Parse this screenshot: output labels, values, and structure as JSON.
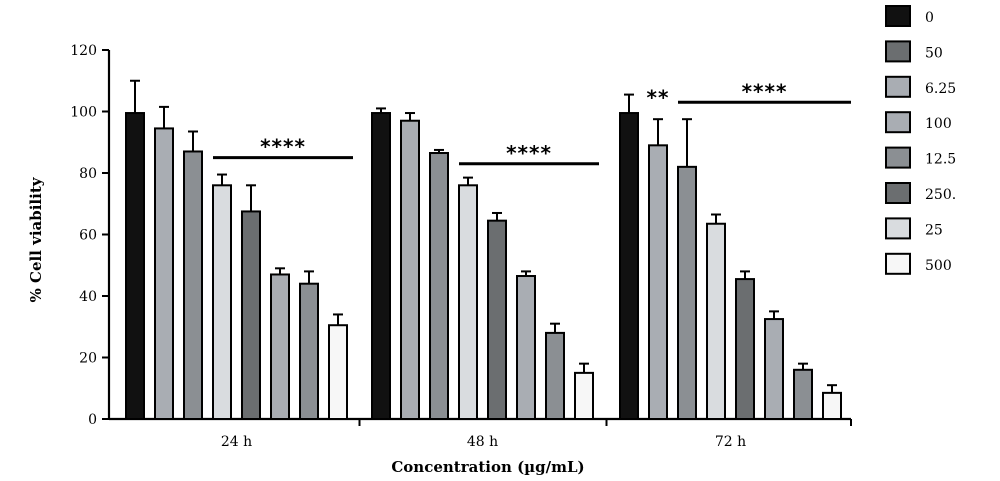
{
  "chart_data": {
    "type": "bar",
    "xlabel": "Concentration (µg/mL)",
    "ylabel": "% Cell viability",
    "ylim": [
      0,
      120
    ],
    "yticks": [
      "0",
      "20",
      "40",
      "60",
      "80",
      "100",
      "120"
    ],
    "categories": [
      "24 h",
      "48 h",
      "72 h"
    ],
    "legend_position": "right",
    "series": [
      {
        "name": "0",
        "color": "#111111",
        "values": [
          99.5,
          99.5,
          99.5
        ],
        "errors": [
          10.5,
          1.5,
          6.0
        ]
      },
      {
        "name": "50",
        "color": "#a9adb3",
        "values": [
          94.5,
          97.0,
          89.0
        ],
        "errors": [
          7.0,
          2.5,
          8.5
        ]
      },
      {
        "name": "6.25",
        "color": "#8b8f93",
        "values": [
          87.0,
          86.5,
          82.0
        ],
        "errors": [
          6.5,
          1.0,
          15.5
        ]
      },
      {
        "name": "100",
        "color": "#d9dcdf",
        "values": [
          76.0,
          76.0,
          63.5
        ],
        "errors": [
          3.5,
          2.5,
          3.0
        ]
      },
      {
        "name": "12.5",
        "color": "#6b6e70",
        "values": [
          67.5,
          64.5,
          45.5
        ],
        "errors": [
          8.5,
          2.5,
          2.5
        ]
      },
      {
        "name": "250.",
        "color": "#a9adb3",
        "values": [
          47.0,
          46.5,
          32.5
        ],
        "errors": [
          2.0,
          1.5,
          2.5
        ]
      },
      {
        "name": "25",
        "color": "#8b8f93",
        "values": [
          44.0,
          28.0,
          16.0
        ],
        "errors": [
          4.0,
          3.0,
          2.0
        ]
      },
      {
        "name": "500",
        "color": "#f7f7f7",
        "values": [
          30.5,
          15.0,
          8.5
        ],
        "errors": [
          3.5,
          3.0,
          2.5
        ]
      }
    ],
    "legend_colors": [
      "#111111",
      "#6b6e70",
      "#a9adb3",
      "#a9adb3",
      "#8b8f93",
      "#6b6e70",
      "#d9dcdf",
      "#f7f7f7"
    ],
    "annotations": [
      {
        "text": "****",
        "group": 0,
        "from_bar": 3,
        "to_bar": 7,
        "y": 85
      },
      {
        "text": "****",
        "group": 1,
        "from_bar": 3,
        "to_bar": 7,
        "y": 83
      },
      {
        "text": "**",
        "group": 2,
        "bar": 1,
        "y": 103
      },
      {
        "text": "****",
        "group": 2,
        "from_bar": 2,
        "to_bar": 7,
        "y": 103
      }
    ]
  }
}
